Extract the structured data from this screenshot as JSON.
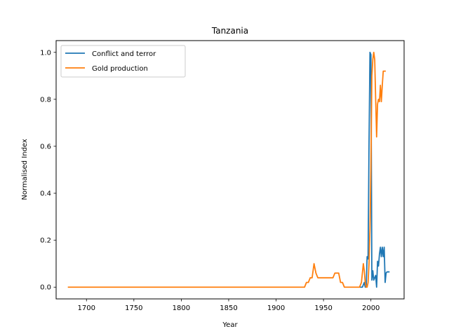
{
  "chart_data": {
    "type": "line",
    "title": "Tanzania",
    "xlabel": "Year",
    "ylabel": "Normalised Index",
    "xlim": [
      1668,
      2035
    ],
    "ylim": [
      -0.05,
      1.05
    ],
    "xticks": [
      1700,
      1750,
      1800,
      1850,
      1900,
      1950,
      2000
    ],
    "yticks": [
      0.0,
      0.2,
      0.4,
      0.6,
      0.8,
      1.0
    ],
    "ytick_labels": [
      "0.0",
      "0.2",
      "0.4",
      "0.6",
      "0.8",
      "1.0"
    ],
    "grid": false,
    "legend_position": "top-left",
    "series": [
      {
        "name": "Conflict and terror",
        "color": "#1f77b4",
        "x": [
          1989,
          1990,
          1991,
          1992,
          1993,
          1994,
          1995,
          1996,
          1997,
          1998,
          1999,
          2000,
          2001,
          2002,
          2003,
          2004,
          2005,
          2006,
          2007,
          2008,
          2009,
          2010,
          2011,
          2012,
          2013,
          2014,
          2015,
          2016,
          2017,
          2018,
          2019
        ],
        "y": [
          0.0,
          0.0,
          0.0,
          0.01,
          0.02,
          0.0,
          0.0,
          0.13,
          0.12,
          0.6,
          1.0,
          0.99,
          0.03,
          0.07,
          0.03,
          0.04,
          0.05,
          0.0,
          0.11,
          0.09,
          0.14,
          0.17,
          0.13,
          0.17,
          0.13,
          0.17,
          0.02,
          0.06,
          0.065,
          0.065,
          0.065
        ]
      },
      {
        "name": "Gold production",
        "color": "#ff7f0e",
        "x": [
          1681,
          1930,
          1932,
          1934,
          1936,
          1938,
          1940,
          1942,
          1944,
          1950,
          1955,
          1960,
          1962,
          1966,
          1968,
          1970,
          1972,
          1988,
          1990,
          1992,
          1993,
          1994,
          1995,
          1996,
          1997,
          1998,
          1999,
          2000,
          2001,
          2002,
          2003,
          2004,
          2005,
          2006,
          2007,
          2008,
          2009,
          2010,
          2011,
          2012,
          2013,
          2014,
          2015
        ],
        "y": [
          0.0,
          0.0,
          0.02,
          0.02,
          0.04,
          0.04,
          0.1,
          0.06,
          0.04,
          0.04,
          0.04,
          0.04,
          0.06,
          0.06,
          0.02,
          0.02,
          0.0,
          0.0,
          0.02,
          0.1,
          0.07,
          0.02,
          0.0,
          0.0,
          0.02,
          0.1,
          0.25,
          0.5,
          0.9,
          0.97,
          1.0,
          0.97,
          0.8,
          0.64,
          0.78,
          0.8,
          0.79,
          0.86,
          0.79,
          0.86,
          0.92,
          0.92,
          0.92
        ]
      }
    ]
  }
}
